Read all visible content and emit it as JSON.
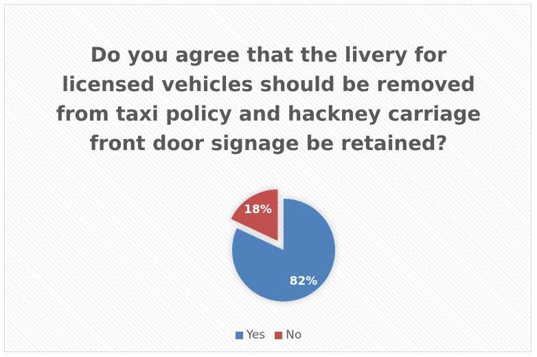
{
  "chart_data": {
    "type": "pie",
    "title": "Do you agree that the livery for licensed vehicles should be removed from taxi policy and hackney carriage front door signage be retained?",
    "title_lines": [
      "Do you agree that the livery for",
      "licensed vehicles should be removed",
      "from taxi policy and hackney carriage",
      "front door signage be retained?"
    ],
    "slices": [
      {
        "label": "Yes",
        "value": 82,
        "data_label": "82%",
        "color": "#4f81bd",
        "exploded": false
      },
      {
        "label": "No",
        "value": 18,
        "data_label": "18%",
        "color": "#c0504d",
        "exploded": true
      }
    ],
    "legend_position": "bottom"
  }
}
